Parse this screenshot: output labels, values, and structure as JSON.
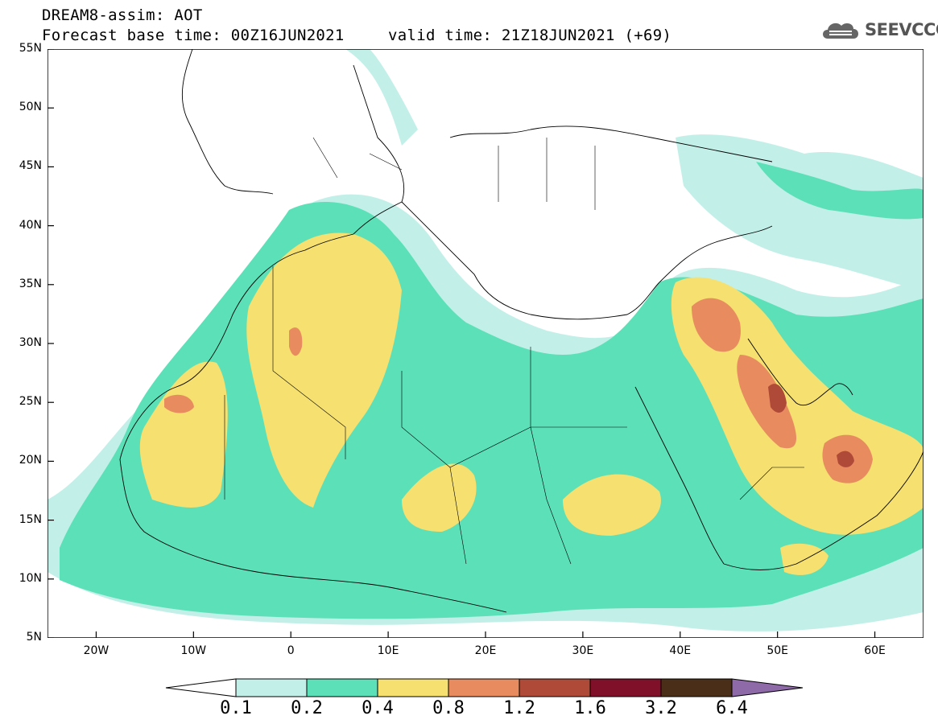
{
  "header": {
    "line1": "DREAM8-assim: AOT",
    "line2": "Forecast base time: 00Z16JUN2021",
    "line3": "valid time: 21Z18JUN2021 (+69)"
  },
  "logo": {
    "text": "SEEVCCC",
    "icon": "cloud-icon"
  },
  "map": {
    "lat_labels": [
      "55N",
      "50N",
      "45N",
      "40N",
      "35N",
      "30N",
      "25N",
      "20N",
      "15N",
      "10N",
      "5N"
    ],
    "lon_labels": [
      "20W",
      "10W",
      "0",
      "10E",
      "20E",
      "30E",
      "40E",
      "50E",
      "60E"
    ],
    "lon_range": [
      -25,
      65
    ],
    "lat_range": [
      5,
      55
    ]
  },
  "colorbar": {
    "labels": [
      "0.1",
      "0.2",
      "0.4",
      "0.8",
      "1.2",
      "1.6",
      "3.2",
      "6.4"
    ],
    "colors": [
      "#ffffff",
      "#c2f0e8",
      "#5ce0b8",
      "#f5e070",
      "#e88c60",
      "#b04a38",
      "#80102a",
      "#4a2e18",
      "#8e6aa8"
    ]
  }
}
